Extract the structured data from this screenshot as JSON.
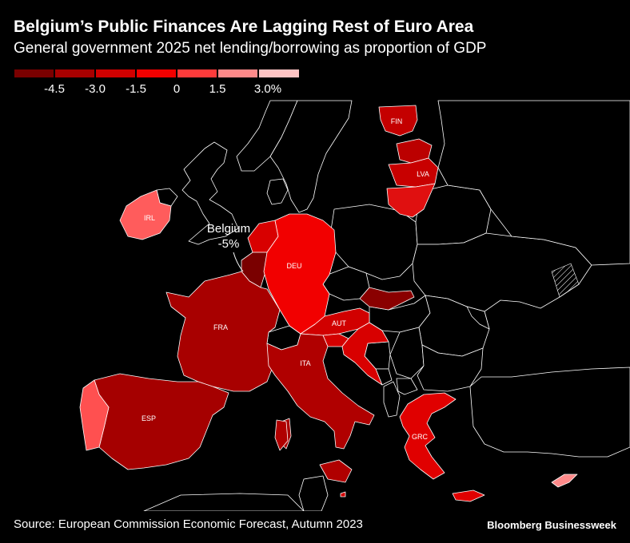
{
  "header": {
    "title": "Belgium’s Public Finances Are Lagging Rest of Euro Area",
    "subtitle": "General government 2025 net lending/borrowing as proportion of GDP"
  },
  "legend": {
    "colors": [
      "#7a0000",
      "#a80000",
      "#d10000",
      "#f20000",
      "#ff3b3b",
      "#ff8a8a",
      "#ffc4c4"
    ],
    "ticks": [
      "-4.5",
      "-3.0",
      "-1.5",
      "0",
      "1.5",
      "3.0%"
    ]
  },
  "map": {
    "colors": {
      "ocean": "#000000",
      "non_euro_fill": "#000000",
      "border": "#ffffff"
    },
    "countries": [
      {
        "code": "FIN",
        "label": "FIN",
        "color": "#c40000"
      },
      {
        "code": "LVA",
        "label": "LVA",
        "color": "#c80000"
      },
      {
        "code": "IRL",
        "label": "IRL",
        "color": "#ff5c5c"
      },
      {
        "code": "DEU",
        "label": "DEU",
        "color": "#f20000"
      },
      {
        "code": "FRA",
        "label": "FRA",
        "color": "#a80000"
      },
      {
        "code": "AUT",
        "label": "AUT",
        "color": "#d10000"
      },
      {
        "code": "ITA",
        "label": "ITA",
        "color": "#b00000"
      },
      {
        "code": "ESP",
        "label": "ESP",
        "color": "#a50000"
      },
      {
        "code": "GRC",
        "label": "GRC",
        "color": "#e00000"
      },
      {
        "code": "BEL",
        "label": "",
        "color": "#7a0000"
      },
      {
        "code": "NLD",
        "label": "",
        "color": "#d80000"
      },
      {
        "code": "PRT",
        "label": "",
        "color": "#ff5050"
      },
      {
        "code": "SVK",
        "label": "",
        "color": "#8a0000"
      },
      {
        "code": "SVN",
        "label": "",
        "color": "#d40000"
      },
      {
        "code": "HRV",
        "label": "",
        "color": "#d80000"
      },
      {
        "code": "EST",
        "label": "",
        "color": "#bb0000"
      },
      {
        "code": "LTU",
        "label": "",
        "color": "#e01010"
      },
      {
        "code": "CYP",
        "label": "",
        "color": "#ff8a8a"
      },
      {
        "code": "MLT",
        "label": "",
        "color": "#d00000"
      }
    ],
    "annotation": {
      "line1": "Belgium",
      "line2": "-5%"
    }
  },
  "footer": {
    "source": "Source: European Commission Economic Forecast, Autumn 2023",
    "brand": "Bloomberg Businessweek"
  }
}
